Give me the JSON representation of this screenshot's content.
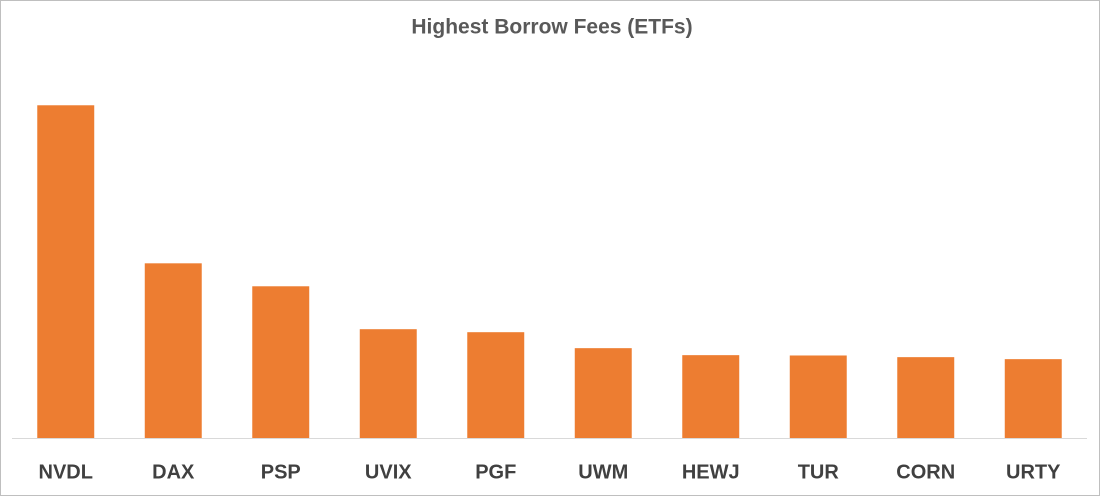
{
  "chart_data": {
    "type": "bar",
    "title": "Highest Borrow Fees (ETFs)",
    "categories": [
      "NVDL",
      "DAX",
      "PSP",
      "UVIX",
      "PGF",
      "UWM",
      "HEWJ",
      "TUR",
      "CORN",
      "URTY"
    ],
    "values": [
      100,
      52.5,
      45.6,
      32.7,
      31.8,
      27,
      24.9,
      24.8,
      24.3,
      23.7
    ],
    "color": "#ed7d31",
    "ylim": [
      0,
      110
    ]
  }
}
